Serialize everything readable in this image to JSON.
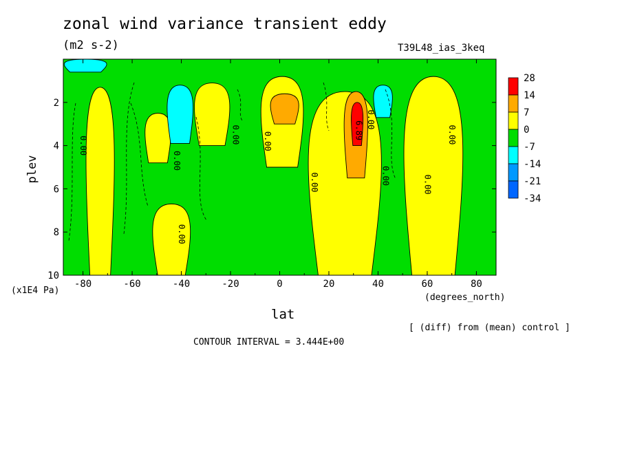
{
  "header": {
    "title": "zonal wind variance transient eddy",
    "units": "(m2 s-2)",
    "case_label": "T39L48_ias_3keq"
  },
  "footer": {
    "y_units": "(x1E4 Pa)",
    "x_units": "(degrees_north)",
    "diff_note": "[ (diff) from (mean) control ]",
    "contour_interval": "CONTOUR INTERVAL = 3.444E+00"
  },
  "chart_data": {
    "type": "heatmap",
    "title": "zonal wind variance transient eddy",
    "xlabel": "lat",
    "ylabel": "plev",
    "xlim": [
      -88,
      88
    ],
    "ylim": [
      10,
      0
    ],
    "x_ticks": [
      -80,
      -60,
      -40,
      -20,
      0,
      20,
      40,
      60,
      80
    ],
    "x_tick_labels": [
      "-80",
      "-60",
      "-40",
      "-20",
      "0",
      "20",
      "40",
      "60",
      "80"
    ],
    "y_ticks": [
      2,
      4,
      6,
      8,
      10
    ],
    "y_tick_labels": [
      "2",
      "4",
      "6",
      "8",
      "10"
    ],
    "colorbar": {
      "levels": [
        "28",
        "14",
        "7",
        "0",
        "-7",
        "-14",
        "-21",
        "-34"
      ],
      "colors": [
        "#ff0000",
        "#ffaa00",
        "#ffff00",
        "#00dd00",
        "#00ffff",
        "#0099ff",
        "#0066ff"
      ]
    },
    "contour_labels": [
      {
        "text": "0.00",
        "lat": -81,
        "p": 4.0
      },
      {
        "text": "0.00",
        "lat": -43,
        "p": 4.7
      },
      {
        "text": "0.00",
        "lat": -41,
        "p": 8.1
      },
      {
        "text": "0.00",
        "lat": -19,
        "p": 3.5
      },
      {
        "text": "0.00",
        "lat": -6,
        "p": 3.8
      },
      {
        "text": "0.00",
        "lat": 13,
        "p": 5.7
      },
      {
        "text": "6.89",
        "lat": 31,
        "p": 3.3
      },
      {
        "text": "0.00",
        "lat": 36,
        "p": 2.8
      },
      {
        "text": "0.00",
        "lat": 42,
        "p": 5.4
      },
      {
        "text": "0.00",
        "lat": 59,
        "p": 5.8
      },
      {
        "text": "0.00",
        "lat": 69,
        "p": 3.5
      }
    ],
    "regions": [
      {
        "level": "0 to 7",
        "color": "#ffff00",
        "lat": [
          -79,
          -67
        ],
        "p": [
          1.3,
          10
        ]
      },
      {
        "level": "0 to 7",
        "color": "#ffff00",
        "lat": [
          -55,
          -44
        ],
        "p": [
          2.5,
          4.8
        ]
      },
      {
        "level": "0 to 7",
        "color": "#ffff00",
        "lat": [
          -52,
          -36
        ],
        "p": [
          6.7,
          10
        ]
      },
      {
        "level": "0 to 7",
        "color": "#ffff00",
        "lat": [
          -35,
          -20
        ],
        "p": [
          1.1,
          4
        ]
      },
      {
        "level": "0 to 7",
        "color": "#ffff00",
        "lat": [
          -8,
          10
        ],
        "p": [
          0.8,
          5
        ]
      },
      {
        "level": "0 to 7",
        "color": "#ffff00",
        "lat": [
          11,
          42
        ],
        "p": [
          1.5,
          10
        ]
      },
      {
        "level": "0 to 7",
        "color": "#ffff00",
        "lat": [
          50,
          75
        ],
        "p": [
          0.8,
          10
        ]
      },
      {
        "level": "7 to 14",
        "color": "#ffaa00",
        "lat": [
          -4,
          8
        ],
        "p": [
          1.6,
          3
        ]
      },
      {
        "level": "7 to 14",
        "color": "#ffaa00",
        "lat": [
          26,
          36
        ],
        "p": [
          1.5,
          5.5
        ]
      },
      {
        "level": "14 to 28",
        "color": "#ff0000",
        "lat": [
          29,
          34
        ],
        "p": [
          2,
          4
        ]
      },
      {
        "level": "-7 to -14",
        "color": "#00ffff",
        "lat": [
          -46,
          -35
        ],
        "p": [
          1.2,
          3.9
        ]
      },
      {
        "level": "-7 to -14",
        "color": "#00ffff",
        "lat": [
          38,
          46
        ],
        "p": [
          1.2,
          2.7
        ]
      },
      {
        "level": "-7 to -14",
        "color": "#00ffff",
        "lat": [
          -88,
          -70
        ],
        "p": [
          0,
          0.6
        ]
      }
    ]
  }
}
